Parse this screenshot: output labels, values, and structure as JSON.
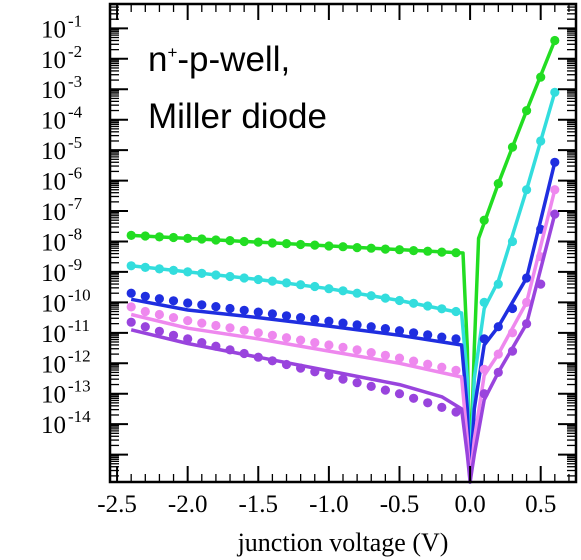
{
  "chart_data": {
    "type": "scatter",
    "title": "",
    "xlabel": "junction  voltage  (V)",
    "ylabel": "",
    "xlim": [
      -2.55,
      0.75
    ],
    "ylim_log10": [
      -15.9,
      -0.2
    ],
    "y_scale": "log",
    "grid": false,
    "x_ticks": [
      {
        "value": -2.5,
        "label": "-2.5"
      },
      {
        "value": -2.0,
        "label": "-2.0"
      },
      {
        "value": -1.5,
        "label": "-1.5"
      },
      {
        "value": -1.0,
        "label": "-1.0"
      },
      {
        "value": -0.5,
        "label": "-0.5"
      },
      {
        "value": 0.0,
        "label": "0.0"
      },
      {
        "value": 0.5,
        "label": "0.5"
      }
    ],
    "y_ticks": [
      {
        "exp": -1,
        "base": "10",
        "sup": "-1"
      },
      {
        "exp": -2,
        "base": "10",
        "sup": "-2"
      },
      {
        "exp": -3,
        "base": "10",
        "sup": "-3"
      },
      {
        "exp": -4,
        "base": "10",
        "sup": "-4"
      },
      {
        "exp": -5,
        "base": "10",
        "sup": "-5"
      },
      {
        "exp": -6,
        "base": "10",
        "sup": "-6"
      },
      {
        "exp": -7,
        "base": "10",
        "sup": "-7"
      },
      {
        "exp": -8,
        "base": "10",
        "sup": "-8"
      },
      {
        "exp": -9,
        "base": "10",
        "sup": "-9"
      },
      {
        "exp": -10,
        "base": "10",
        "sup": "-10"
      },
      {
        "exp": -11,
        "base": "10",
        "sup": "-11"
      },
      {
        "exp": -12,
        "base": "10",
        "sup": "-12"
      },
      {
        "exp": -13,
        "base": "10",
        "sup": "-13"
      },
      {
        "exp": -14,
        "base": "10",
        "sup": "-14"
      }
    ],
    "annotation": {
      "line1_prefix": "n",
      "line1_sup": "+",
      "line1_rest": "-p-well,",
      "line2": "Miller diode"
    },
    "series": [
      {
        "color": "#22dd22",
        "points": [
          [
            -2.4,
            -7.8
          ],
          [
            -2.3,
            -7.82
          ],
          [
            -2.2,
            -7.85
          ],
          [
            -2.1,
            -7.87
          ],
          [
            -2.0,
            -7.9
          ],
          [
            -1.9,
            -7.92
          ],
          [
            -1.8,
            -7.95
          ],
          [
            -1.7,
            -7.97
          ],
          [
            -1.6,
            -8.0
          ],
          [
            -1.5,
            -8.02
          ],
          [
            -1.4,
            -8.05
          ],
          [
            -1.3,
            -8.07
          ],
          [
            -1.2,
            -8.1
          ],
          [
            -1.1,
            -8.12
          ],
          [
            -1.0,
            -8.15
          ],
          [
            -0.9,
            -8.17
          ],
          [
            -0.8,
            -8.2
          ],
          [
            -0.7,
            -8.22
          ],
          [
            -0.6,
            -8.25
          ],
          [
            -0.5,
            -8.27
          ],
          [
            -0.4,
            -8.3
          ],
          [
            -0.3,
            -8.32
          ],
          [
            -0.2,
            -8.35
          ],
          [
            -0.1,
            -8.37
          ],
          [
            0.1,
            -7.3
          ],
          [
            0.2,
            -6.1
          ],
          [
            0.3,
            -4.9
          ],
          [
            0.4,
            -3.7
          ],
          [
            0.5,
            -2.6
          ],
          [
            0.6,
            -1.4
          ]
        ],
        "curve": [
          [
            -2.4,
            -7.8
          ],
          [
            -0.05,
            -8.38
          ],
          [
            -0.02,
            -11.5
          ],
          [
            0.0,
            -15.9
          ],
          [
            0.03,
            -11.5
          ],
          [
            0.06,
            -7.9
          ],
          [
            0.2,
            -6.1
          ],
          [
            0.4,
            -3.7
          ],
          [
            0.6,
            -1.4
          ]
        ]
      },
      {
        "color": "#33dddd",
        "points": [
          [
            -2.4,
            -8.8
          ],
          [
            -2.3,
            -8.85
          ],
          [
            -2.2,
            -8.9
          ],
          [
            -2.1,
            -8.95
          ],
          [
            -2.0,
            -9.0
          ],
          [
            -1.9,
            -9.05
          ],
          [
            -1.8,
            -9.1
          ],
          [
            -1.7,
            -9.15
          ],
          [
            -1.6,
            -9.2
          ],
          [
            -1.5,
            -9.25
          ],
          [
            -1.4,
            -9.3
          ],
          [
            -1.3,
            -9.36
          ],
          [
            -1.2,
            -9.42
          ],
          [
            -1.1,
            -9.48
          ],
          [
            -1.0,
            -9.55
          ],
          [
            -0.9,
            -9.62
          ],
          [
            -0.8,
            -9.7
          ],
          [
            -0.7,
            -9.78
          ],
          [
            -0.6,
            -9.86
          ],
          [
            -0.5,
            -9.94
          ],
          [
            -0.4,
            -10.03
          ],
          [
            -0.3,
            -10.12
          ],
          [
            -0.2,
            -10.21
          ],
          [
            -0.1,
            -10.3
          ],
          [
            0.1,
            -10.0
          ],
          [
            0.2,
            -9.4
          ],
          [
            0.3,
            -8.0
          ],
          [
            0.4,
            -6.3
          ],
          [
            0.5,
            -4.7
          ],
          [
            0.6,
            -3.1
          ]
        ],
        "curve": [
          [
            -2.4,
            -8.8
          ],
          [
            -1.5,
            -9.25
          ],
          [
            -1.0,
            -9.55
          ],
          [
            -0.5,
            -9.94
          ],
          [
            -0.06,
            -10.35
          ],
          [
            -0.02,
            -12.5
          ],
          [
            0.0,
            -15.9
          ],
          [
            0.03,
            -12.5
          ],
          [
            0.1,
            -10.2
          ],
          [
            0.2,
            -9.3
          ],
          [
            0.4,
            -6.3
          ],
          [
            0.6,
            -3.1
          ]
        ]
      },
      {
        "color": "#1f2ee0",
        "points": [
          [
            -2.4,
            -9.7
          ],
          [
            -2.3,
            -9.8
          ],
          [
            -2.2,
            -9.88
          ],
          [
            -2.1,
            -9.95
          ],
          [
            -2.0,
            -10.02
          ],
          [
            -1.9,
            -10.08
          ],
          [
            -1.8,
            -10.14
          ],
          [
            -1.7,
            -10.2
          ],
          [
            -1.6,
            -10.26
          ],
          [
            -1.5,
            -10.32
          ],
          [
            -1.4,
            -10.38
          ],
          [
            -1.3,
            -10.44
          ],
          [
            -1.2,
            -10.5
          ],
          [
            -1.1,
            -10.56
          ],
          [
            -1.0,
            -10.62
          ],
          [
            -0.9,
            -10.68
          ],
          [
            -0.8,
            -10.74
          ],
          [
            -0.7,
            -10.8
          ],
          [
            -0.6,
            -10.86
          ],
          [
            -0.5,
            -10.93
          ],
          [
            -0.4,
            -11.0
          ],
          [
            -0.3,
            -11.07
          ],
          [
            -0.2,
            -11.14
          ],
          [
            -0.1,
            -11.2
          ],
          [
            0.1,
            -11.2
          ],
          [
            0.2,
            -10.8
          ],
          [
            0.3,
            -10.2
          ],
          [
            0.4,
            -9.2
          ],
          [
            0.5,
            -7.6
          ],
          [
            0.6,
            -5.4
          ]
        ],
        "curve": [
          [
            -2.4,
            -9.9
          ],
          [
            -2.0,
            -10.25
          ],
          [
            -1.5,
            -10.5
          ],
          [
            -1.0,
            -10.78
          ],
          [
            -0.5,
            -11.08
          ],
          [
            -0.06,
            -11.4
          ],
          [
            -0.02,
            -13.5
          ],
          [
            0.0,
            -15.9
          ],
          [
            0.03,
            -13.5
          ],
          [
            0.1,
            -11.4
          ],
          [
            0.2,
            -10.8
          ],
          [
            0.4,
            -9.2
          ],
          [
            0.6,
            -5.4
          ]
        ]
      },
      {
        "color": "#ee88ee",
        "points": [
          [
            -2.4,
            -10.15
          ],
          [
            -2.3,
            -10.3
          ],
          [
            -2.2,
            -10.4
          ],
          [
            -2.1,
            -10.5
          ],
          [
            -2.0,
            -10.6
          ],
          [
            -1.9,
            -10.68
          ],
          [
            -1.8,
            -10.76
          ],
          [
            -1.7,
            -10.84
          ],
          [
            -1.6,
            -10.92
          ],
          [
            -1.5,
            -11.0
          ],
          [
            -1.4,
            -11.08
          ],
          [
            -1.3,
            -11.16
          ],
          [
            -1.2,
            -11.24
          ],
          [
            -1.1,
            -11.32
          ],
          [
            -1.0,
            -11.4
          ],
          [
            -0.9,
            -11.48
          ],
          [
            -0.8,
            -11.56
          ],
          [
            -0.7,
            -11.65
          ],
          [
            -0.6,
            -11.74
          ],
          [
            -0.5,
            -11.83
          ],
          [
            -0.4,
            -11.93
          ],
          [
            -0.3,
            -12.03
          ],
          [
            -0.2,
            -12.13
          ],
          [
            -0.1,
            -12.23
          ],
          [
            0.1,
            -12.2
          ],
          [
            0.2,
            -11.7
          ],
          [
            0.3,
            -11.0
          ],
          [
            0.4,
            -10.0
          ],
          [
            0.5,
            -8.5
          ],
          [
            0.6,
            -6.3
          ]
        ],
        "curve": [
          [
            -2.4,
            -10.4
          ],
          [
            -2.0,
            -10.85
          ],
          [
            -1.5,
            -11.2
          ],
          [
            -1.0,
            -11.6
          ],
          [
            -0.5,
            -12.0
          ],
          [
            -0.06,
            -12.45
          ],
          [
            -0.02,
            -14.5
          ],
          [
            0.0,
            -15.9
          ],
          [
            0.03,
            -14.5
          ],
          [
            0.1,
            -12.4
          ],
          [
            0.2,
            -11.7
          ],
          [
            0.4,
            -10.0
          ],
          [
            0.6,
            -6.3
          ]
        ]
      },
      {
        "color": "#9944dd",
        "points": [
          [
            -2.4,
            -10.65
          ],
          [
            -2.3,
            -10.8
          ],
          [
            -2.2,
            -10.95
          ],
          [
            -2.1,
            -11.08
          ],
          [
            -2.0,
            -11.2
          ],
          [
            -1.9,
            -11.32
          ],
          [
            -1.8,
            -11.44
          ],
          [
            -1.7,
            -11.56
          ],
          [
            -1.6,
            -11.68
          ],
          [
            -1.5,
            -11.8
          ],
          [
            -1.4,
            -11.92
          ],
          [
            -1.3,
            -12.04
          ],
          [
            -1.2,
            -12.16
          ],
          [
            -1.1,
            -12.28
          ],
          [
            -1.0,
            -12.4
          ],
          [
            -0.9,
            -12.52
          ],
          [
            -0.8,
            -12.64
          ],
          [
            -0.7,
            -12.76
          ],
          [
            -0.6,
            -12.88
          ],
          [
            -0.5,
            -13.0
          ],
          [
            -0.4,
            -13.15
          ],
          [
            -0.3,
            -13.3
          ],
          [
            -0.2,
            -13.45
          ],
          [
            -0.1,
            -13.6
          ],
          [
            0.1,
            -13.0
          ],
          [
            0.2,
            -12.3
          ],
          [
            0.3,
            -11.6
          ],
          [
            0.4,
            -10.7
          ],
          [
            0.5,
            -9.4
          ],
          [
            0.6,
            -7.1
          ]
        ],
        "curve": [
          [
            -2.4,
            -10.9
          ],
          [
            -2.0,
            -11.35
          ],
          [
            -1.5,
            -11.8
          ],
          [
            -1.0,
            -12.25
          ],
          [
            -0.5,
            -12.7
          ],
          [
            -0.2,
            -13.1
          ],
          [
            -0.06,
            -13.5
          ],
          [
            -0.02,
            -15.0
          ],
          [
            0.0,
            -15.9
          ],
          [
            0.03,
            -15.0
          ],
          [
            0.1,
            -13.2
          ],
          [
            0.2,
            -12.3
          ],
          [
            0.4,
            -10.7
          ],
          [
            0.6,
            -7.1
          ]
        ]
      }
    ]
  }
}
